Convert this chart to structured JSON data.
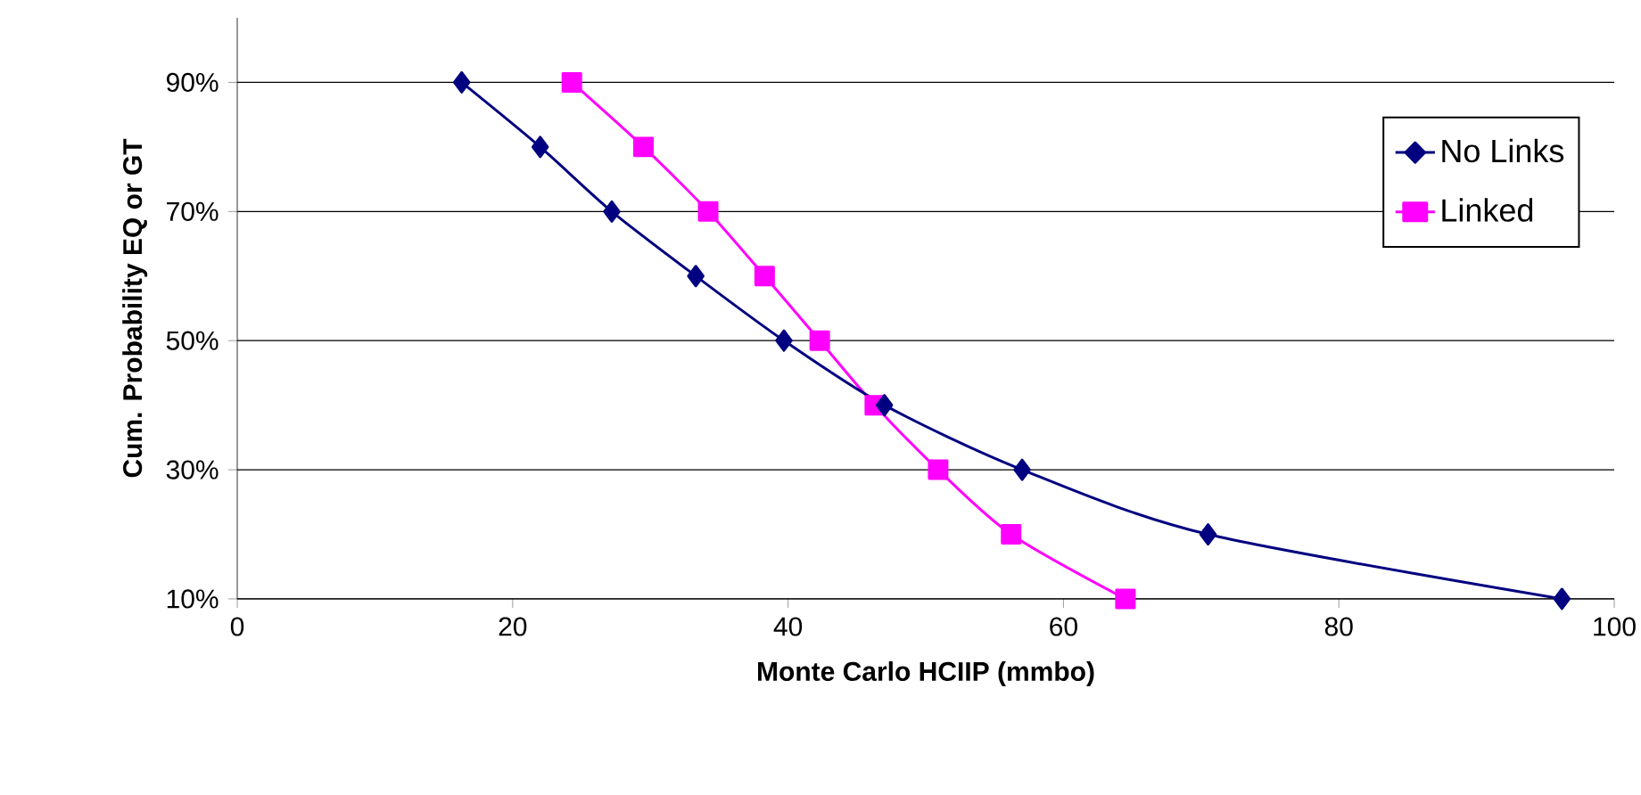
{
  "chart_data": {
    "type": "line",
    "xlabel": "Monte Carlo HCIIP (mmbo)",
    "ylabel": "Cum. Probability EQ or GT",
    "xlim": [
      0,
      100
    ],
    "xticks": [
      0,
      20,
      40,
      60,
      80,
      100
    ],
    "ylim": [
      10,
      100
    ],
    "yticks": [
      {
        "value": 10,
        "label": "10%"
      },
      {
        "value": 30,
        "label": "30%"
      },
      {
        "value": 50,
        "label": "50%"
      },
      {
        "value": 70,
        "label": "70%"
      },
      {
        "value": 90,
        "label": "90%"
      }
    ],
    "grid": "y",
    "legend": "top right",
    "series": [
      {
        "name": "No Links",
        "color": "#000080",
        "marker": "diamond",
        "x": [
          16.3,
          22,
          27.2,
          33.3,
          39.7,
          47,
          57,
          70.5,
          96.2
        ],
        "values": [
          90,
          80,
          70,
          60,
          50,
          40,
          30,
          20,
          10
        ]
      },
      {
        "name": "Linked",
        "color": "#ff00ff",
        "marker": "square",
        "x": [
          24.3,
          29.5,
          34.2,
          38.3,
          42.3,
          46.3,
          50.9,
          56.2,
          64.5
        ],
        "values": [
          90,
          80,
          70,
          60,
          50,
          40,
          30,
          20,
          10
        ]
      }
    ]
  }
}
